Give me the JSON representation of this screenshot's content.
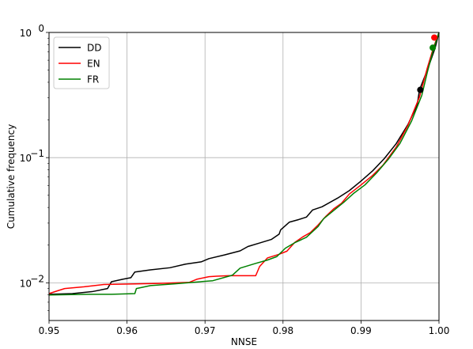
{
  "chart_data": {
    "type": "line",
    "xlabel": "NNSE",
    "ylabel": "Cumulative frequency",
    "x_scale": "linear",
    "y_scale": "log",
    "xlim": [
      0.95,
      1.0
    ],
    "ylim": [
      0.005,
      1.0
    ],
    "x_ticks": [
      0.95,
      0.96,
      0.97,
      0.98,
      0.99,
      1.0
    ],
    "x_tick_labels": [
      "0.95",
      "0.96",
      "0.97",
      "0.98",
      "0.99",
      "1.00"
    ],
    "y_ticks": [
      0.01,
      0.1,
      1
    ],
    "y_tick_labels": [
      {
        "base": "10",
        "exp": "−2"
      },
      {
        "base": "10",
        "exp": "−1"
      },
      {
        "base": "10",
        "exp": "0"
      }
    ],
    "grid": true,
    "legend_position": "upper-left",
    "series": [
      {
        "name": "DD",
        "color": "#000000",
        "points": [
          [
            0.95,
            0.0081
          ],
          [
            0.953,
            0.0082
          ],
          [
            0.9555,
            0.0085
          ],
          [
            0.9575,
            0.009
          ],
          [
            0.958,
            0.0102
          ],
          [
            0.9595,
            0.0107
          ],
          [
            0.9605,
            0.011
          ],
          [
            0.961,
            0.0122
          ],
          [
            0.963,
            0.0127
          ],
          [
            0.9655,
            0.0132
          ],
          [
            0.9675,
            0.0141
          ],
          [
            0.9695,
            0.0147
          ],
          [
            0.9705,
            0.0156
          ],
          [
            0.9725,
            0.0167
          ],
          [
            0.9745,
            0.018
          ],
          [
            0.9755,
            0.0195
          ],
          [
            0.977,
            0.0208
          ],
          [
            0.9785,
            0.0222
          ],
          [
            0.9795,
            0.0245
          ],
          [
            0.9797,
            0.0265
          ],
          [
            0.9808,
            0.0305
          ],
          [
            0.982,
            0.032
          ],
          [
            0.983,
            0.0335
          ],
          [
            0.9838,
            0.0382
          ],
          [
            0.985,
            0.0405
          ],
          [
            0.987,
            0.0475
          ],
          [
            0.9885,
            0.0545
          ],
          [
            0.99,
            0.065
          ],
          [
            0.9915,
            0.0785
          ],
          [
            0.993,
            0.0985
          ],
          [
            0.9945,
            0.129
          ],
          [
            0.996,
            0.183
          ],
          [
            0.9972,
            0.262
          ],
          [
            0.9975,
            0.348
          ],
          [
            0.9985,
            0.5
          ],
          [
            0.9995,
            0.75
          ],
          [
            1.0,
            1.0
          ]
        ],
        "marker": [
          0.9976,
          0.348
        ]
      },
      {
        "name": "EN",
        "color": "#ff0000",
        "points": [
          [
            0.95,
            0.0082
          ],
          [
            0.951,
            0.0086
          ],
          [
            0.952,
            0.009
          ],
          [
            0.9545,
            0.0093
          ],
          [
            0.957,
            0.0097
          ],
          [
            0.961,
            0.0098
          ],
          [
            0.964,
            0.0099
          ],
          [
            0.968,
            0.0101
          ],
          [
            0.969,
            0.0107
          ],
          [
            0.9705,
            0.0112
          ],
          [
            0.9715,
            0.0113
          ],
          [
            0.973,
            0.0114
          ],
          [
            0.9765,
            0.0114
          ],
          [
            0.977,
            0.0135
          ],
          [
            0.978,
            0.0158
          ],
          [
            0.9795,
            0.0169
          ],
          [
            0.9805,
            0.0179
          ],
          [
            0.9815,
            0.021
          ],
          [
            0.9825,
            0.0232
          ],
          [
            0.9835,
            0.0252
          ],
          [
            0.9845,
            0.029
          ],
          [
            0.9855,
            0.034
          ],
          [
            0.9865,
            0.039
          ],
          [
            0.9875,
            0.0432
          ],
          [
            0.9885,
            0.0512
          ],
          [
            0.99,
            0.0605
          ],
          [
            0.9915,
            0.0722
          ],
          [
            0.9928,
            0.0868
          ],
          [
            0.9945,
            0.121
          ],
          [
            0.996,
            0.18
          ],
          [
            0.9975,
            0.305
          ],
          [
            0.9985,
            0.52
          ],
          [
            0.9993,
            0.76
          ],
          [
            1.0,
            1.0
          ]
        ],
        "marker": [
          0.9994,
          0.91
        ]
      },
      {
        "name": "FR",
        "color": "#008000",
        "points": [
          [
            0.95,
            0.008
          ],
          [
            0.955,
            0.0081
          ],
          [
            0.958,
            0.0081
          ],
          [
            0.961,
            0.0082
          ],
          [
            0.9612,
            0.009
          ],
          [
            0.963,
            0.0095
          ],
          [
            0.966,
            0.0098
          ],
          [
            0.9685,
            0.0101
          ],
          [
            0.971,
            0.0104
          ],
          [
            0.9735,
            0.0115
          ],
          [
            0.9745,
            0.0131
          ],
          [
            0.9765,
            0.0143
          ],
          [
            0.978,
            0.0152
          ],
          [
            0.9792,
            0.0162
          ],
          [
            0.9803,
            0.0189
          ],
          [
            0.9815,
            0.0209
          ],
          [
            0.983,
            0.0231
          ],
          [
            0.9845,
            0.0282
          ],
          [
            0.9852,
            0.0325
          ],
          [
            0.9868,
            0.0392
          ],
          [
            0.9878,
            0.044
          ],
          [
            0.989,
            0.0515
          ],
          [
            0.9905,
            0.0605
          ],
          [
            0.992,
            0.0755
          ],
          [
            0.9935,
            0.097
          ],
          [
            0.995,
            0.13
          ],
          [
            0.9965,
            0.197
          ],
          [
            0.9978,
            0.315
          ],
          [
            0.9985,
            0.48
          ],
          [
            0.9993,
            0.74
          ],
          [
            1.0,
            1.0
          ]
        ],
        "marker": [
          0.9992,
          0.755
        ]
      }
    ]
  }
}
